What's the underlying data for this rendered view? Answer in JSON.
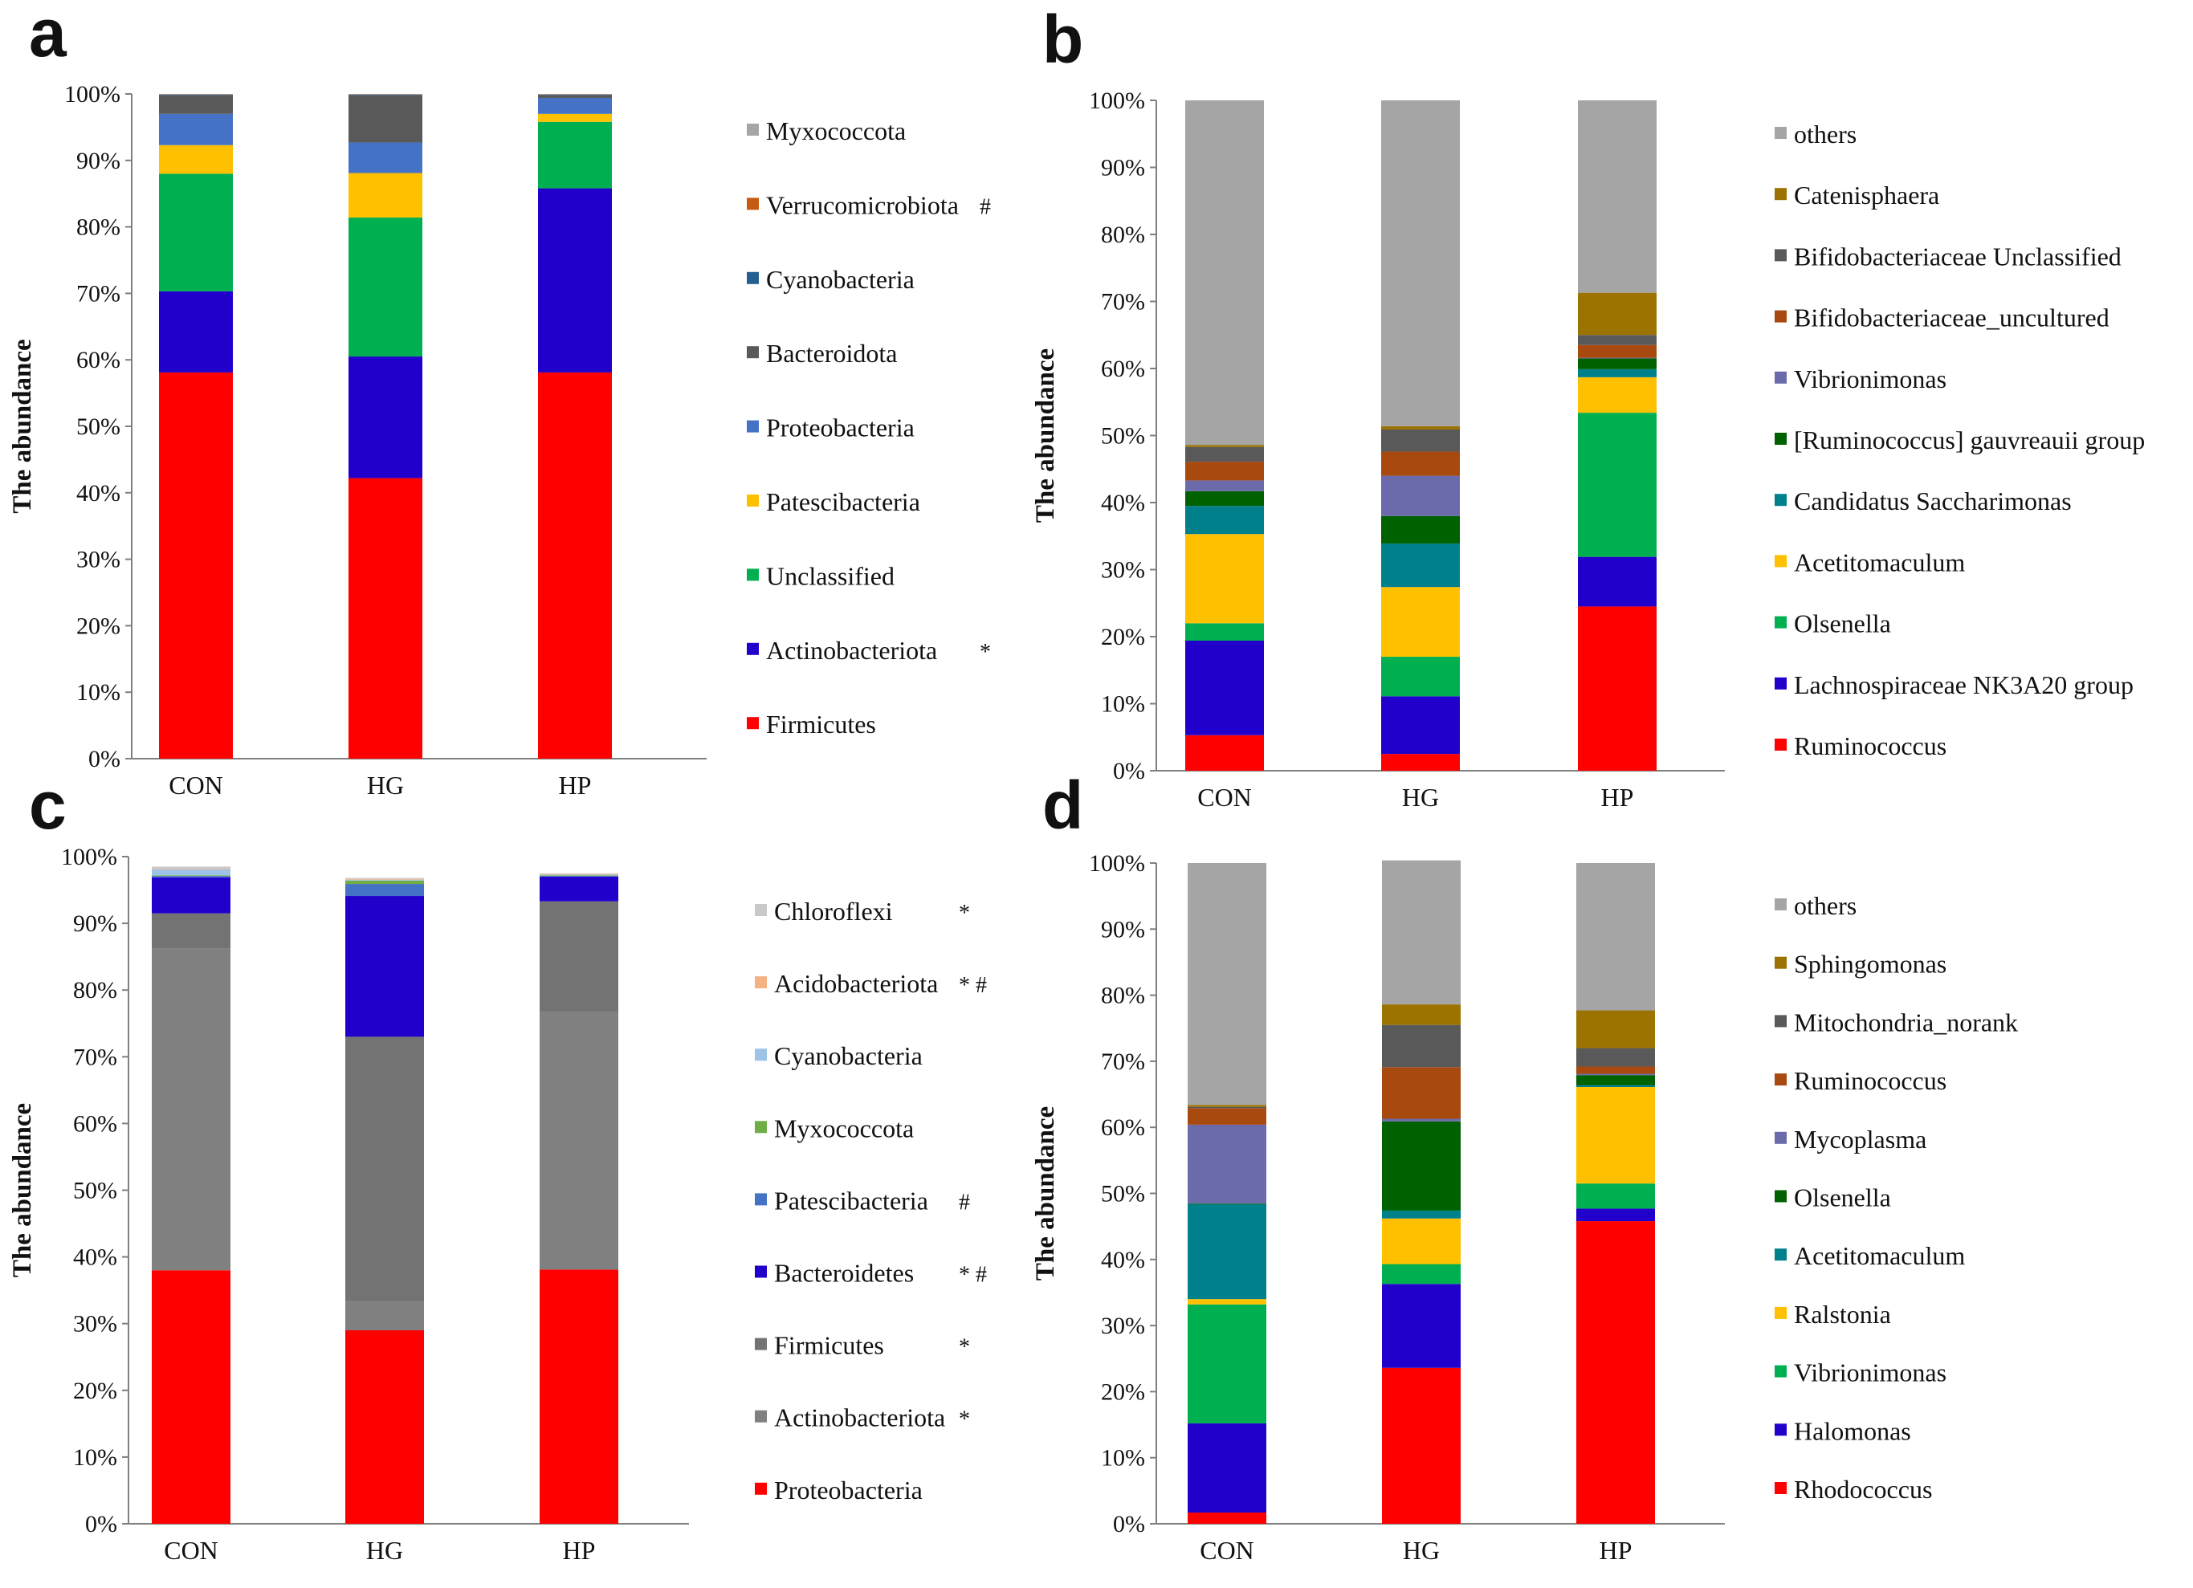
{
  "chart_data": [
    {
      "type": "bar",
      "stacked": true,
      "panel": "a",
      "ylabel": "The abundance",
      "ylim": [
        0,
        100
      ],
      "yticks": [
        "0%",
        "10%",
        "20%",
        "30%",
        "40%",
        "50%",
        "60%",
        "70%",
        "80%",
        "90%",
        "100%"
      ],
      "categories": [
        "CON",
        "HG",
        "HP"
      ],
      "series": [
        {
          "name": "Firmicutes",
          "color": "#ff0000",
          "mark": "",
          "values": [
            58.1,
            42.2,
            58.1
          ]
        },
        {
          "name": "Actinobacteriota",
          "color": "#2200cc",
          "mark": "*",
          "values": [
            12.2,
            18.3,
            27.7
          ]
        },
        {
          "name": "Unclassified",
          "color": "#00b050",
          "mark": "",
          "values": [
            17.7,
            20.9,
            10.0
          ]
        },
        {
          "name": "Patescibacteria",
          "color": "#ffc000",
          "mark": "",
          "values": [
            4.3,
            6.7,
            1.2
          ]
        },
        {
          "name": "Proteobacteria",
          "color": "#4472c4",
          "mark": "",
          "values": [
            4.7,
            4.6,
            2.4
          ]
        },
        {
          "name": "Bacteroidota",
          "color": "#595959",
          "mark": "",
          "values": [
            2.8,
            7.1,
            0.4
          ]
        },
        {
          "name": "Cyanobacteria",
          "color": "#255e91",
          "mark": "",
          "values": [
            0.1,
            0.1,
            0.1
          ]
        },
        {
          "name": "Verrucomicrobiota",
          "color": "#c55a11",
          "mark": "#",
          "values": [
            0.05,
            0.05,
            0.05
          ]
        },
        {
          "name": "Myxococcota",
          "color": "#a5a5a5",
          "mark": "",
          "values": [
            0.05,
            0.05,
            0.05
          ]
        }
      ]
    },
    {
      "type": "bar",
      "stacked": true,
      "panel": "b",
      "ylabel": "The abundance",
      "ylim": [
        0,
        100
      ],
      "yticks": [
        "0%",
        "10%",
        "20%",
        "30%",
        "40%",
        "50%",
        "60%",
        "70%",
        "80%",
        "90%",
        "100%"
      ],
      "categories": [
        "CON",
        "HG",
        "HP"
      ],
      "series": [
        {
          "name": "Ruminococcus",
          "color": "#ff0000",
          "mark": "",
          "values": [
            5.3,
            2.5,
            24.5
          ]
        },
        {
          "name": "Lachnospiraceae NK3A20 group",
          "color": "#2200cc",
          "mark": "",
          "values": [
            14.1,
            8.6,
            7.4
          ]
        },
        {
          "name": "Olsenella",
          "color": "#00b050",
          "mark": "",
          "values": [
            2.6,
            5.9,
            21.5
          ]
        },
        {
          "name": "Acetitomaculum",
          "color": "#ffc000",
          "mark": "",
          "values": [
            13.3,
            10.4,
            5.3
          ]
        },
        {
          "name": "Candidatus Saccharimonas",
          "color": "#00808a",
          "mark": "",
          "values": [
            4.2,
            6.5,
            1.2
          ]
        },
        {
          "name": "[Ruminococcus] gauvreauii group",
          "color": "#006100",
          "mark": "",
          "values": [
            2.2,
            4.1,
            1.6
          ]
        },
        {
          "name": "Vibrionimonas",
          "color": "#6b6bab",
          "mark": "",
          "values": [
            1.6,
            6.0,
            0.1
          ]
        },
        {
          "name": "Bifidobacteriaceae_uncultured",
          "color": "#a84a10",
          "mark": "",
          "values": [
            2.8,
            3.6,
            1.9
          ]
        },
        {
          "name": "Bifidobacteriaceae Unclassified",
          "color": "#595959",
          "mark": "",
          "values": [
            2.2,
            3.3,
            1.5
          ]
        },
        {
          "name": "Catenisphaera",
          "color": "#9c7300",
          "mark": "",
          "values": [
            0.3,
            0.5,
            6.3
          ]
        },
        {
          "name": "others",
          "color": "#a5a5a5",
          "mark": "",
          "values": [
            51.4,
            48.6,
            28.7
          ]
        }
      ]
    },
    {
      "type": "bar",
      "stacked": true,
      "panel": "c",
      "ylabel": "The  abundance",
      "ylim": [
        0,
        100
      ],
      "yticks": [
        "0%",
        "10%",
        "20%",
        "30%",
        "40%",
        "50%",
        "60%",
        "70%",
        "80%",
        "90%",
        "100%"
      ],
      "categories": [
        "CON",
        "HG",
        "HP"
      ],
      "series": [
        {
          "name": "Proteobacteria",
          "color": "#ff0000",
          "mark": "",
          "values": [
            38.0,
            29.0,
            38.1
          ]
        },
        {
          "name": "Actinobacteriota",
          "color": "#808080",
          "mark": "*",
          "values": [
            48.2,
            4.3,
            38.6
          ]
        },
        {
          "name": "Firmicutes",
          "color": "#737373",
          "mark": "*",
          "values": [
            5.3,
            39.7,
            16.6
          ]
        },
        {
          "name": "Bacteroidetes",
          "color": "#2200cc",
          "mark": "* #",
          "values": [
            5.4,
            21.1,
            3.7
          ]
        },
        {
          "name": "Patescibacteria",
          "color": "#4472c4",
          "mark": "#",
          "values": [
            0.2,
            1.8,
            0.1
          ]
        },
        {
          "name": "Myxococcota",
          "color": "#70ad47",
          "mark": "",
          "values": [
            0.1,
            0.5,
            0.1
          ]
        },
        {
          "name": "Cyanobacteria",
          "color": "#9dc3e6",
          "mark": "",
          "values": [
            0.9,
            0.1,
            0.1
          ]
        },
        {
          "name": "Acidobacteriota",
          "color": "#f4b183",
          "mark": "* #",
          "values": [
            0.1,
            0.1,
            0.1
          ]
        },
        {
          "name": "Chloroflexi",
          "color": "#c9c9c9",
          "mark": "*",
          "values": [
            0.3,
            0.2,
            0.1
          ]
        }
      ]
    },
    {
      "type": "bar",
      "stacked": true,
      "panel": "d",
      "ylabel": "The abundance",
      "ylim": [
        0,
        100
      ],
      "yticks": [
        "0%",
        "10%",
        "20%",
        "30%",
        "40%",
        "50%",
        "60%",
        "70%",
        "80%",
        "90%",
        "100%"
      ],
      "categories": [
        "CON",
        "HG",
        "HP"
      ],
      "series": [
        {
          "name": "Rhodococcus",
          "color": "#ff0000",
          "mark": "",
          "values": [
            1.7,
            23.6,
            45.8
          ]
        },
        {
          "name": "Halomonas",
          "color": "#2200cc",
          "mark": "",
          "values": [
            13.5,
            12.7,
            1.9
          ]
        },
        {
          "name": "Vibrionimonas",
          "color": "#00b050",
          "mark": "",
          "values": [
            18.0,
            3.0,
            3.8
          ]
        },
        {
          "name": "Ralstonia",
          "color": "#ffc000",
          "mark": "",
          "values": [
            0.8,
            6.9,
            14.6
          ]
        },
        {
          "name": "Acetitomaculum",
          "color": "#00808a",
          "mark": "",
          "values": [
            14.4,
            1.2,
            0.3
          ]
        },
        {
          "name": "Olsenella",
          "color": "#006100",
          "mark": "",
          "values": [
            0.1,
            13.5,
            1.5
          ]
        },
        {
          "name": "Mycoplasma",
          "color": "#6b6bab",
          "mark": "",
          "values": [
            11.9,
            0.4,
            0.2
          ]
        },
        {
          "name": "Ruminococcus",
          "color": "#a84a10",
          "mark": "",
          "values": [
            2.5,
            7.8,
            1.1
          ]
        },
        {
          "name": "Mitochondria_norank",
          "color": "#595959",
          "mark": "",
          "values": [
            0.2,
            6.4,
            2.8
          ]
        },
        {
          "name": "Sphingomonas",
          "color": "#9c7300",
          "mark": "",
          "values": [
            0.3,
            3.1,
            5.7
          ]
        },
        {
          "name": "others",
          "color": "#a5a5a5",
          "mark": "",
          "values": [
            36.6,
            21.8,
            22.3
          ]
        }
      ]
    }
  ]
}
